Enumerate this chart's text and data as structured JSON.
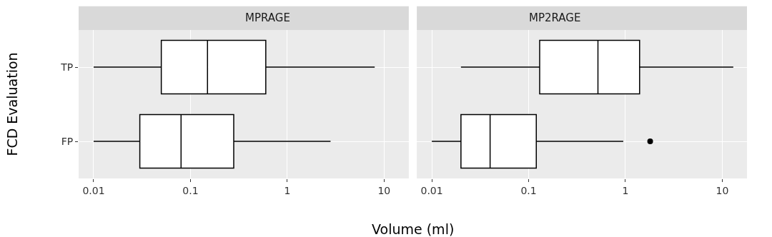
{
  "chart_data": [
    {
      "type": "box",
      "title": "MPRAGE",
      "orientation": "horizontal",
      "log": "x",
      "grid": true,
      "xlabel": "Volume (ml)",
      "ylabel": "FCD Evaluation",
      "categories": [
        "TP",
        "FP"
      ],
      "boxes": [
        {
          "low": 0.01,
          "q1": 0.05,
          "median": 0.15,
          "q3": 0.6,
          "high": 8
        },
        {
          "low": 0.01,
          "q1": 0.03,
          "median": 0.08,
          "q3": 0.28,
          "high": 2.8
        }
      ],
      "xlim": [
        0.007,
        18
      ],
      "xticks": [
        0.01,
        0.1,
        1,
        10
      ]
    },
    {
      "type": "box",
      "title": "MP2RAGE",
      "orientation": "horizontal",
      "log": "x",
      "grid": true,
      "tick_labels": "x",
      "categories": [
        "TP",
        "FP"
      ],
      "boxes": [
        {
          "low": 0.02,
          "q1": 0.13,
          "median": 0.52,
          "q3": 1.4,
          "high": 13
        },
        {
          "low": 0.01,
          "q1": 0.02,
          "median": 0.04,
          "q3": 0.12,
          "high": 0.95,
          "outliers": [
            1.8
          ]
        }
      ],
      "xlim": [
        0.007,
        18
      ],
      "xticks": [
        0.01,
        0.1,
        1,
        10
      ]
    }
  ]
}
